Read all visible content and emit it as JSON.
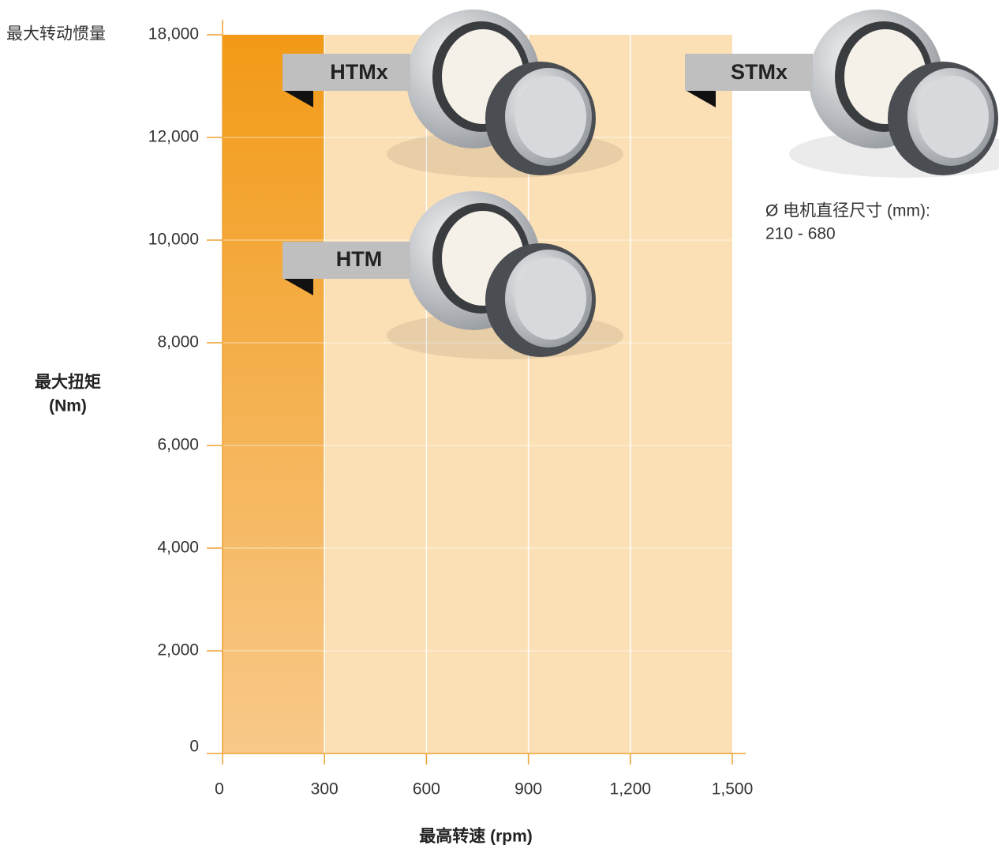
{
  "chart_data": {
    "type": "region",
    "x_label": "最高转速 (rpm)",
    "y_label": [
      "最大扭矩",
      "(Nm)"
    ],
    "y_top_label": "最大转动惯量",
    "xlim": [
      0,
      1500
    ],
    "xticks": [
      0,
      300,
      600,
      900,
      {
        "value": 1200,
        "label": "1,200"
      },
      {
        "value": 1500,
        "label": "1,500"
      }
    ],
    "ylim": [
      0,
      18000
    ],
    "yticks": [
      0,
      {
        "value": 2000,
        "label": "2,000"
      },
      {
        "value": 4000,
        "label": "4,000"
      },
      {
        "value": 6000,
        "label": "6,000"
      },
      {
        "value": 8000,
        "label": "8,000"
      },
      {
        "value": 10000,
        "label": "10,000"
      },
      {
        "value": 12000,
        "label": "12,000"
      },
      {
        "value": 18000,
        "label": "18,000"
      }
    ],
    "grid": true,
    "regions": [
      {
        "x": [
          0,
          1500
        ],
        "y": [
          0,
          18000
        ],
        "color": "#fbe0b6"
      },
      {
        "x": [
          0,
          300
        ],
        "y": [
          0,
          18000
        ],
        "color": "#f29a17"
      }
    ],
    "annotations": [
      "HTMx",
      "STMx",
      "HTM"
    ],
    "note": [
      "Ø 电机直径尺寸 (mm):",
      "210 - 680"
    ]
  }
}
